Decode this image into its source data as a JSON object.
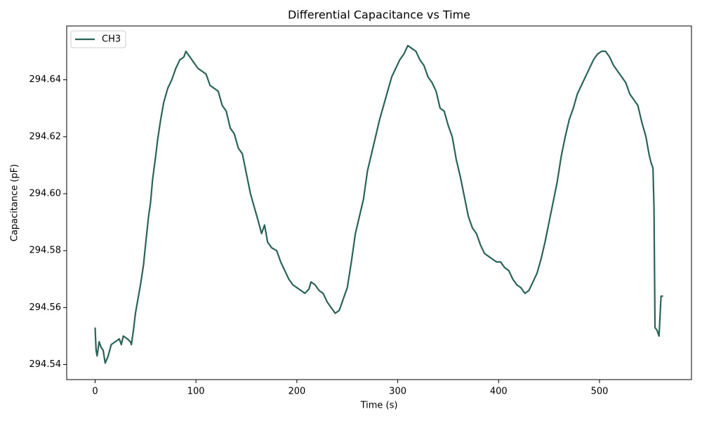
{
  "chart_data": {
    "type": "line",
    "title": "Differential Capacitance vs Time",
    "x_label": "Time (s)",
    "y_label": "Capacitance (pF)",
    "legend": "upper left",
    "grid": false,
    "xlim": [
      -28.15,
      591.15
    ],
    "ylim": [
      294.5347,
      294.6589
    ],
    "xticks": [
      0,
      100,
      200,
      300,
      400,
      500
    ],
    "yticks": [
      294.54,
      294.56,
      294.58,
      {
        "value": 294.6,
        "label": "294.60"
      },
      294.62,
      294.64
    ],
    "x": [
      0,
      1,
      2,
      4,
      6,
      8,
      10,
      13,
      16,
      20,
      24,
      26,
      28,
      32,
      35,
      36,
      38,
      40,
      42,
      45,
      48,
      50,
      53,
      55,
      57,
      60,
      62,
      65,
      68,
      72,
      76,
      80,
      84,
      88,
      90,
      94,
      98,
      102,
      106,
      110,
      114,
      118,
      122,
      126,
      130,
      134,
      138,
      142,
      146,
      150,
      154,
      158,
      162,
      165,
      168,
      171,
      175,
      180,
      184,
      188,
      192,
      196,
      200,
      204,
      208,
      212,
      214,
      218,
      222,
      226,
      230,
      234,
      238,
      242,
      246,
      250,
      254,
      258,
      262,
      266,
      270,
      274,
      278,
      282,
      286,
      290,
      294,
      298,
      302,
      306,
      310,
      314,
      318,
      322,
      326,
      330,
      334,
      338,
      342,
      346,
      350,
      354,
      358,
      362,
      366,
      370,
      374,
      378,
      382,
      386,
      390,
      394,
      398,
      402,
      406,
      410,
      414,
      418,
      422,
      426,
      430,
      434,
      438,
      442,
      446,
      450,
      454,
      458,
      462,
      466,
      470,
      474,
      478,
      482,
      486,
      490,
      494,
      498,
      502,
      506,
      510,
      514,
      518,
      522,
      526,
      530,
      534,
      538,
      542,
      546,
      549,
      551,
      553,
      554,
      555,
      557,
      559,
      561,
      563
    ],
    "series": [
      {
        "name": "CH3",
        "color": "#2a6358",
        "values": [
          294.553,
          294.545,
          294.543,
          294.548,
          294.546,
          294.545,
          294.5405,
          294.543,
          294.547,
          294.548,
          294.549,
          294.547,
          294.55,
          294.549,
          294.548,
          294.547,
          294.552,
          294.558,
          294.562,
          294.568,
          294.575,
          294.582,
          294.592,
          294.597,
          294.605,
          294.613,
          294.619,
          294.626,
          294.632,
          294.637,
          294.64,
          294.644,
          294.647,
          294.648,
          294.65,
          294.648,
          294.646,
          294.644,
          294.643,
          294.642,
          294.638,
          294.637,
          294.636,
          294.631,
          294.629,
          294.623,
          294.621,
          294.616,
          294.614,
          294.607,
          294.6,
          294.595,
          294.59,
          294.586,
          294.589,
          294.583,
          294.581,
          294.58,
          294.576,
          294.573,
          294.57,
          294.568,
          294.567,
          294.566,
          294.565,
          294.5665,
          294.569,
          294.568,
          294.566,
          294.565,
          294.562,
          294.56,
          294.558,
          294.559,
          294.563,
          294.567,
          294.576,
          294.586,
          294.592,
          294.598,
          294.608,
          294.614,
          294.62,
          294.626,
          294.631,
          294.636,
          294.641,
          294.644,
          294.647,
          294.649,
          294.652,
          294.651,
          294.65,
          294.647,
          294.645,
          294.641,
          294.639,
          294.636,
          294.63,
          294.629,
          294.624,
          294.62,
          294.612,
          294.606,
          294.599,
          294.592,
          294.588,
          294.586,
          294.582,
          294.579,
          294.578,
          294.577,
          294.576,
          294.576,
          294.574,
          294.573,
          294.57,
          294.568,
          294.567,
          294.565,
          294.566,
          294.569,
          294.572,
          294.577,
          294.583,
          294.59,
          294.597,
          294.604,
          294.613,
          294.62,
          294.626,
          294.63,
          294.635,
          294.638,
          294.641,
          294.644,
          294.647,
          294.649,
          294.65,
          294.65,
          294.648,
          294.645,
          294.643,
          294.641,
          294.639,
          294.635,
          294.633,
          294.631,
          294.625,
          294.62,
          294.614,
          294.611,
          294.609,
          294.595,
          294.553,
          294.552,
          294.55,
          294.564,
          294.564
        ]
      }
    ]
  }
}
